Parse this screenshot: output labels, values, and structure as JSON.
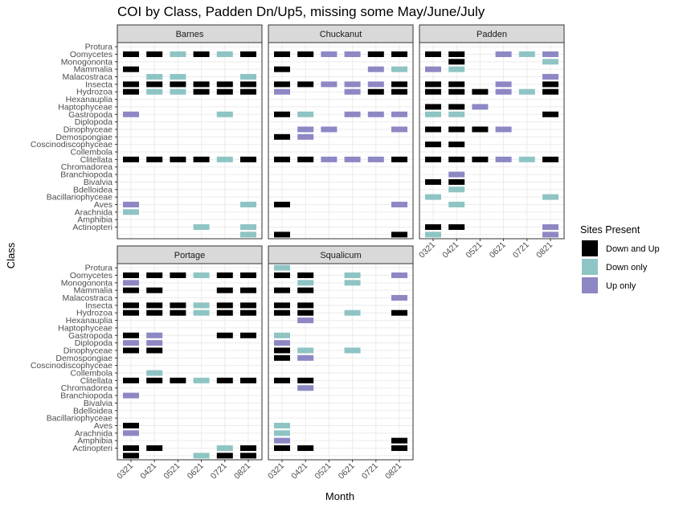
{
  "chart_data": {
    "type": "heatmap",
    "title": "COI by Class, Padden Dn/Up5, missing some May/June/July",
    "xlabel": "Month",
    "ylabel": "Class",
    "months": [
      "0321",
      "0421",
      "0521",
      "0621",
      "0721",
      "0821"
    ],
    "classes": [
      "Protura",
      "Oomycetes",
      "Monogononta",
      "Mammalia",
      "Malacostraca",
      "Insecta",
      "Hydrozoa",
      "Hexanauplia",
      "Haptophyceae",
      "Gastropoda",
      "Diplopoda",
      "Dinophyceae",
      "Demospongiae",
      "Coscinodiscophyceae",
      "Collembola",
      "Clitellata",
      "Chromadorea",
      "Branchiopoda",
      "Bivalvia",
      "Bdelloidea",
      "Bacillariophyceae",
      "Aves",
      "Arachnida",
      "Amphibia",
      "Actinopteri",
      ""
    ],
    "legend": {
      "title": "Sites Present",
      "entries": [
        {
          "key": "B",
          "label": "Down and Up",
          "color": "#000000"
        },
        {
          "key": "D",
          "label": "Down only",
          "color": "#8fc4c4"
        },
        {
          "key": "U",
          "label": "Up only",
          "color": "#8d88c4"
        }
      ]
    },
    "grid": true,
    "panels": [
      {
        "name": "Barnes",
        "rows": [
          "......",
          "BBDBDB",
          "......",
          "B.....",
          ".DD..D",
          "BBBBBB",
          "BDDBBB",
          "......",
          "......",
          "U...D.",
          "......",
          "......",
          "......",
          "......",
          "......",
          "BBBBDB",
          "......",
          "......",
          "......",
          "......",
          "......",
          "U....D",
          "D.....",
          "......",
          "...D.D",
          ".....D"
        ]
      },
      {
        "name": "Chuckanut",
        "rows": [
          "......",
          "BBUUBB",
          "......",
          "B...UD",
          "......",
          "BBUUUB",
          "U..UBB",
          "......",
          "......",
          "BD.UUU",
          "......",
          ".UU..U",
          "BU....",
          "......",
          "......",
          "BBUUUB",
          "......",
          "......",
          "......",
          "......",
          "......",
          "B....U",
          "......",
          "......",
          "......",
          "B....B"
        ]
      },
      {
        "name": "Padden",
        "rows": [
          "......",
          "BB.UDU",
          ".B...D",
          "UD....",
          ".....U",
          "BB.U.B",
          "BBBUDB",
          "......",
          "BBU...",
          "DD...B",
          "......",
          "BBBU..",
          "......",
          "BB....",
          "......",
          "BBBUDB",
          "......",
          ".U....",
          "BB....",
          ".D....",
          "D....D",
          ".D....",
          "......",
          "......",
          "BB...U",
          "D....U"
        ]
      },
      {
        "name": "Portage",
        "rows": [
          "......",
          "BBBDBB",
          "U.....",
          "BB..BB",
          "......",
          "BBBDBB",
          "BBBDBB",
          "......",
          "......",
          "BU..BB",
          "UU....",
          "BB....",
          "......",
          "......",
          ".D....",
          "BBBDBB",
          "......",
          "U.....",
          "......",
          "......",
          "......",
          "B.....",
          "U.....",
          "......",
          "BB..DB",
          "B..DBB"
        ]
      },
      {
        "name": "Squalicum",
        "rows": [
          "D.....",
          "BB.D.U",
          ".D.D..",
          "BB....",
          ".....U",
          "BB....",
          "BB.D.B",
          ".U....",
          "......",
          "D.....",
          "U.....",
          "BD.D..",
          "BU....",
          "......",
          "......",
          "BB....",
          ".U....",
          "......",
          "......",
          "......",
          "......",
          "D.....",
          "D.....",
          "U....B",
          "BB...B",
          "......"
        ]
      }
    ]
  }
}
